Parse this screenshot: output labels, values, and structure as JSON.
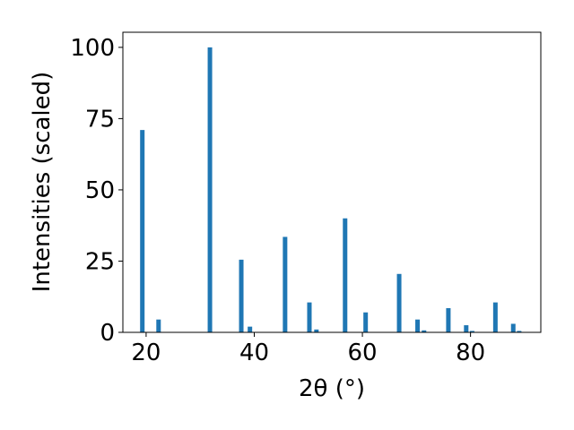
{
  "chart_data": {
    "type": "bar",
    "xlabel": "2θ (°)",
    "ylabel": "Intensities (scaled)",
    "x": [
      19.3,
      22.3,
      31.8,
      37.6,
      39.2,
      45.7,
      50.2,
      51.5,
      56.8,
      60.6,
      66.8,
      70.2,
      71.4,
      75.9,
      79.2,
      80.3,
      84.6,
      87.9,
      89.0
    ],
    "values": [
      71,
      4.5,
      100,
      25.5,
      2,
      33.5,
      10.5,
      1,
      40,
      7,
      20.5,
      4.5,
      0.7,
      8.5,
      2.5,
      0.5,
      10.5,
      3,
      0.5
    ],
    "color": "#1f77b4",
    "xlim": [
      15.7,
      93.0
    ],
    "xticks": [
      20,
      40,
      60,
      80
    ],
    "ylim": [
      0,
      105.3
    ],
    "yticks": [
      0,
      25,
      50,
      75,
      100
    ]
  }
}
